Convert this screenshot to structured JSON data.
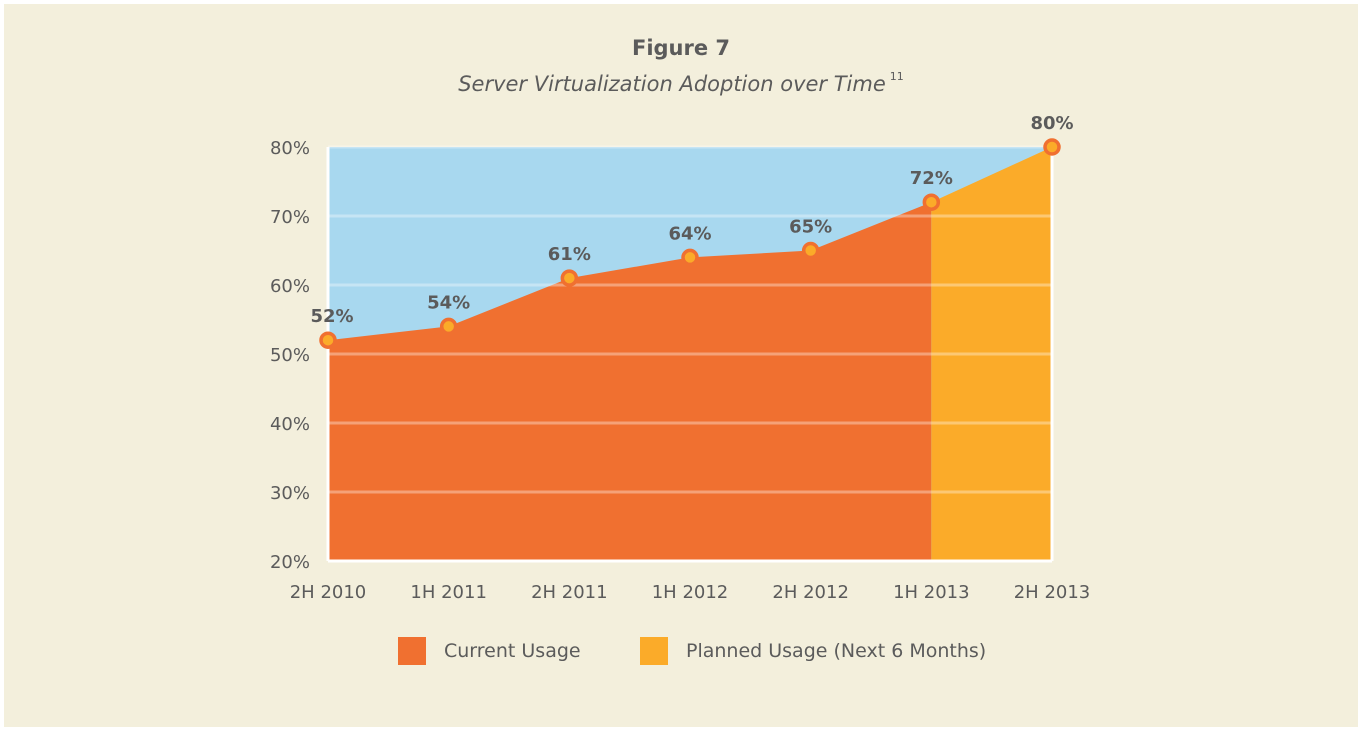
{
  "figure": {
    "title": "Figure 7",
    "subtitle": "Server Virtualization Adoption over Time",
    "footnote": "11"
  },
  "colors": {
    "background": "#f3efdc",
    "plot_bg": "#a8d8ef",
    "current": "#f07030",
    "planned": "#fbab29",
    "marker_ring": "#f07030",
    "marker_fill": "#fbab29",
    "text": "#5b5b5b"
  },
  "chart_data": {
    "type": "area",
    "title": "Server Virtualization Adoption over Time",
    "categories": [
      "2H 2010",
      "1H 2011",
      "2H 2011",
      "1H 2012",
      "2H 2012",
      "1H 2013",
      "2H 2013"
    ],
    "series": [
      {
        "name": "Current Usage",
        "x": [
          "2H 2010",
          "1H 2011",
          "2H 2011",
          "1H 2012",
          "2H 2012",
          "1H 2013"
        ],
        "values": [
          52,
          54,
          61,
          64,
          65,
          72
        ]
      },
      {
        "name": "Planned Usage (Next 6 Months)",
        "x": [
          "1H 2013",
          "2H 2013"
        ],
        "values": [
          72,
          80
        ]
      }
    ],
    "point_labels": [
      "52%",
      "54%",
      "61%",
      "64%",
      "65%",
      "72%",
      "80%"
    ],
    "points": [
      52,
      54,
      61,
      64,
      65,
      72,
      80
    ],
    "ylim": [
      20,
      80
    ],
    "yticks": [
      "20%",
      "30%",
      "40%",
      "50%",
      "60%",
      "70%",
      "80%"
    ],
    "xlabel": "",
    "ylabel": "",
    "grid": true,
    "legend": "bottom"
  },
  "legend": {
    "current_label": "Current Usage",
    "planned_label": "Planned Usage (Next 6 Months)"
  }
}
